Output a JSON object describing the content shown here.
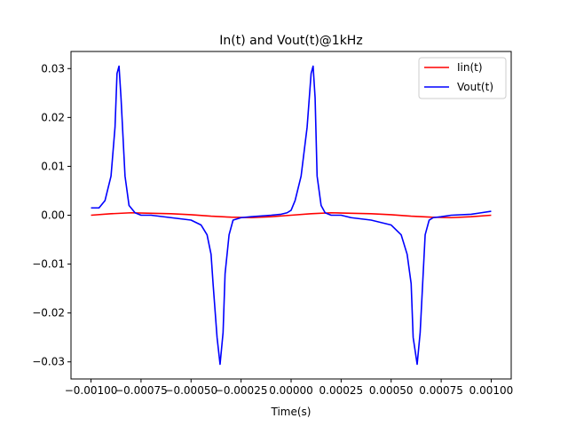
{
  "chart_data": {
    "type": "line",
    "title": "In(t) and Vout(t)@1kHz",
    "xlabel": "Time(s)",
    "ylabel": "",
    "xlim": [
      -0.0011,
      0.0011
    ],
    "ylim": [
      -0.0335,
      0.0335
    ],
    "x_ticks": [
      -0.001,
      -0.00075,
      -0.0005,
      -0.00025,
      0.0,
      0.00025,
      0.0005,
      0.00075,
      0.001
    ],
    "x_tick_labels": [
      "−0.00100",
      "−0.00075",
      "−0.00050",
      "−0.00025",
      "0.00000",
      "0.00025",
      "0.00050",
      "0.00075",
      "0.00100"
    ],
    "y_ticks": [
      -0.03,
      -0.02,
      -0.01,
      0.0,
      0.01,
      0.02,
      0.03
    ],
    "y_tick_labels": [
      "−0.03",
      "−0.02",
      "−0.01",
      "0.00",
      "0.01",
      "0.02",
      "0.03"
    ],
    "grid": false,
    "legend_position": "top-right",
    "series": [
      {
        "name": "Iin(t)",
        "color": "#ff0000",
        "x": [
          -0.001,
          -0.0009,
          -0.0008,
          -0.0007,
          -0.0006,
          -0.0005,
          -0.0004,
          -0.0003,
          -0.0002,
          -0.0001,
          0.0,
          0.0001,
          0.0002,
          0.0003,
          0.0004,
          0.0005,
          0.0006,
          0.0007,
          0.0008,
          0.0009,
          0.001
        ],
        "y": [
          0.0,
          0.0003,
          0.0005,
          0.0004,
          0.0003,
          0.0001,
          -0.0002,
          -0.0004,
          -0.0005,
          -0.0003,
          0.0,
          0.0003,
          0.0005,
          0.0004,
          0.0003,
          0.0001,
          -0.0002,
          -0.0004,
          -0.0005,
          -0.0003,
          0.0
        ]
      },
      {
        "name": "Vout(t)",
        "color": "#0000ff",
        "x": [
          -0.001,
          -0.00096,
          -0.00093,
          -0.0009,
          -0.00088,
          -0.00087,
          -0.00086,
          -0.00085,
          -0.00083,
          -0.00081,
          -0.00078,
          -0.00075,
          -0.0007,
          -0.0006,
          -0.0005,
          -0.00045,
          -0.00042,
          -0.0004,
          -0.00039,
          -0.00037,
          -0.000355,
          -0.00034,
          -0.00033,
          -0.00031,
          -0.00029,
          -0.00025,
          -0.0002,
          -0.0001,
          -5e-05,
          -2e-05,
          0.0,
          2e-05,
          5e-05,
          8e-05,
          0.0001,
          0.00011,
          0.00012,
          0.00013,
          0.00015,
          0.00017,
          0.0002,
          0.00025,
          0.0003,
          0.0004,
          0.0005,
          0.00055,
          0.00058,
          0.0006,
          0.00061,
          0.00063,
          0.000645,
          0.00066,
          0.00067,
          0.00069,
          0.00071,
          0.00075,
          0.0008,
          0.0009,
          0.00095,
          0.001
        ],
        "y": [
          0.0015,
          0.0015,
          0.003,
          0.008,
          0.018,
          0.029,
          0.0305,
          0.024,
          0.008,
          0.002,
          0.0005,
          0.0,
          0.0,
          -0.0005,
          -0.001,
          -0.002,
          -0.004,
          -0.008,
          -0.014,
          -0.025,
          -0.0305,
          -0.024,
          -0.012,
          -0.004,
          -0.001,
          -0.0005,
          -0.0003,
          0.0,
          0.0002,
          0.0005,
          0.001,
          0.003,
          0.008,
          0.018,
          0.029,
          0.0305,
          0.024,
          0.008,
          0.002,
          0.0005,
          0.0,
          0.0,
          -0.0005,
          -0.001,
          -0.002,
          -0.004,
          -0.008,
          -0.014,
          -0.025,
          -0.0305,
          -0.024,
          -0.012,
          -0.004,
          -0.001,
          -0.0005,
          -0.0003,
          0.0,
          0.0002,
          0.0005,
          0.0008
        ]
      }
    ]
  }
}
